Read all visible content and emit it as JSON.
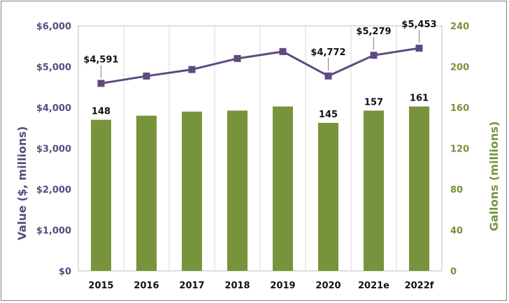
{
  "chart_data": {
    "type": "bar",
    "categories": [
      "2015",
      "2016",
      "2017",
      "2018",
      "2019",
      "2020",
      "2021e",
      "2022f"
    ],
    "series": [
      {
        "type": "bar",
        "axis": "right",
        "values": [
          148,
          152,
          156,
          157,
          161,
          145,
          157,
          161
        ],
        "labels": [
          "148",
          "",
          "",
          "",
          "",
          "145",
          "157",
          "161"
        ],
        "color": "#77933c"
      },
      {
        "type": "line",
        "axis": "left",
        "values": [
          4591,
          4770,
          4930,
          5200,
          5370,
          4772,
          5279,
          5453
        ],
        "labels": [
          "$4,591",
          "",
          "",
          "",
          "",
          "$4,772",
          "$5,279",
          "$5,453"
        ],
        "color": "#5e4a80"
      }
    ],
    "ylabel": "Value ($, millions)",
    "ylabel_right": "Gallons (millions)",
    "ylim": [
      0,
      6000
    ],
    "ylim_right": [
      0,
      240
    ],
    "yticks_left": [
      "$0",
      "$1,000",
      "$2,000",
      "$3,000",
      "$4,000",
      "$5,000",
      "$6,000"
    ],
    "yticks_right": [
      "0",
      "40",
      "80",
      "120",
      "160",
      "200",
      "240"
    ],
    "grid": "vertical",
    "legend": "none"
  }
}
